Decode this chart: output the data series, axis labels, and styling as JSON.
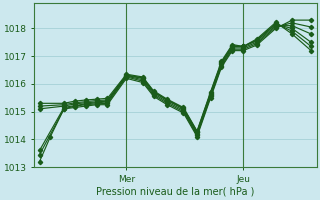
{
  "title": "Pression niveau de la mer( hPa )",
  "background_color": "#cce8ee",
  "grid_color": "#aad4da",
  "line_color": "#1a5c1a",
  "ylim": [
    1013.0,
    1018.9
  ],
  "yticks": [
    1013,
    1014,
    1015,
    1016,
    1017,
    1018
  ],
  "x_day_labels": [
    [
      "Mer",
      0.32
    ],
    [
      "Jeu",
      0.75
    ]
  ],
  "figsize": [
    3.2,
    2.0
  ],
  "dpi": 100,
  "series": [
    [
      0.0,
      1013.2,
      0.04,
      1014.1,
      0.09,
      1015.1,
      0.13,
      1015.15,
      0.17,
      1015.2,
      0.21,
      1015.25,
      0.25,
      1015.25,
      0.32,
      1016.2,
      0.38,
      1016.05,
      0.42,
      1015.55,
      0.47,
      1015.25,
      0.53,
      1014.95,
      0.58,
      1014.1,
      0.63,
      1015.5,
      0.67,
      1016.6,
      0.71,
      1017.2,
      0.75,
      1017.2,
      0.8,
      1017.4,
      0.87,
      1018.0,
      0.93,
      1018.3,
      1.0,
      1018.3
    ],
    [
      0.0,
      1013.45,
      0.09,
      1015.1,
      0.13,
      1015.2,
      0.17,
      1015.25,
      0.21,
      1015.28,
      0.25,
      1015.3,
      0.32,
      1016.25,
      0.38,
      1016.1,
      0.42,
      1015.6,
      0.47,
      1015.3,
      0.53,
      1015.0,
      0.58,
      1014.15,
      0.63,
      1015.55,
      0.67,
      1016.65,
      0.71,
      1017.25,
      0.75,
      1017.25,
      0.8,
      1017.45,
      0.87,
      1018.05,
      0.93,
      1018.2,
      1.0,
      1018.05
    ],
    [
      0.0,
      1013.6,
      0.09,
      1015.15,
      0.13,
      1015.22,
      0.17,
      1015.28,
      0.21,
      1015.32,
      0.25,
      1015.35,
      0.32,
      1016.28,
      0.38,
      1016.15,
      0.42,
      1015.65,
      0.47,
      1015.35,
      0.53,
      1015.05,
      0.58,
      1014.2,
      0.63,
      1015.6,
      0.67,
      1016.7,
      0.71,
      1017.3,
      0.75,
      1017.3,
      0.8,
      1017.5,
      0.87,
      1018.1,
      0.93,
      1018.1,
      1.0,
      1017.8
    ],
    [
      0.0,
      1015.1,
      0.09,
      1015.2,
      0.13,
      1015.28,
      0.17,
      1015.32,
      0.21,
      1015.35,
      0.25,
      1015.38,
      0.32,
      1016.3,
      0.38,
      1016.2,
      0.42,
      1015.7,
      0.47,
      1015.4,
      0.53,
      1015.1,
      0.58,
      1014.25,
      0.63,
      1015.65,
      0.67,
      1016.75,
      0.71,
      1017.35,
      0.75,
      1017.35,
      0.8,
      1017.55,
      0.87,
      1018.15,
      0.93,
      1018.0,
      1.0,
      1017.5
    ],
    [
      0.0,
      1015.2,
      0.09,
      1015.25,
      0.13,
      1015.32,
      0.17,
      1015.36,
      0.21,
      1015.4,
      0.25,
      1015.42,
      0.32,
      1016.32,
      0.38,
      1016.22,
      0.42,
      1015.72,
      0.47,
      1015.42,
      0.53,
      1015.12,
      0.58,
      1014.28,
      0.63,
      1015.68,
      0.67,
      1016.78,
      0.71,
      1017.38,
      0.75,
      1017.35,
      0.8,
      1017.58,
      0.87,
      1018.18,
      0.93,
      1017.9,
      1.0,
      1017.35
    ],
    [
      0.0,
      1015.3,
      0.09,
      1015.3,
      0.13,
      1015.38,
      0.17,
      1015.42,
      0.21,
      1015.45,
      0.25,
      1015.48,
      0.32,
      1016.35,
      0.38,
      1016.25,
      0.42,
      1015.75,
      0.47,
      1015.45,
      0.53,
      1015.15,
      0.58,
      1014.3,
      0.63,
      1015.72,
      0.67,
      1016.82,
      0.71,
      1017.42,
      0.75,
      1017.35,
      0.8,
      1017.62,
      0.87,
      1018.22,
      0.93,
      1017.8,
      1.0,
      1017.2
    ]
  ]
}
